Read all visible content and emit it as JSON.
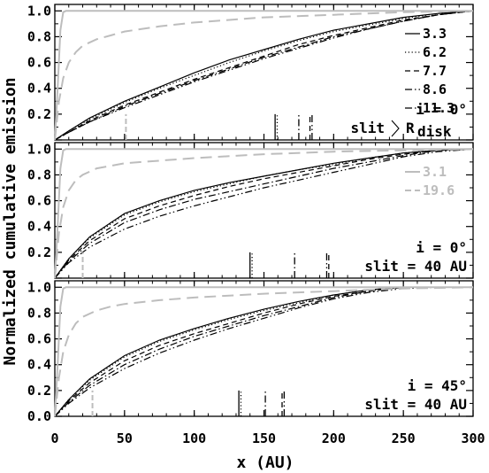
{
  "chart_data": {
    "type": "line",
    "xlabel": "x (AU)",
    "ylabel": "Normalized cumulative emission",
    "xlim": [
      0,
      300
    ],
    "ylim": [
      0,
      1.05
    ],
    "x_ticks": [
      "0",
      "50",
      "100",
      "150",
      "200",
      "250",
      "300"
    ],
    "y_ticks": [
      "0.0",
      "0.2",
      "0.4",
      "0.6",
      "0.8",
      "1.0"
    ],
    "grid": false,
    "colors": {
      "black": "#000000",
      "gray": "#bdbdbd"
    },
    "panels": [
      {
        "annotations": [
          "i = 0°",
          "slit",
          "R"
        ],
        "annotation_sub": "disk",
        "legend": [
          {
            "label": "3.3",
            "style": "solid"
          },
          {
            "label": "6.2",
            "style": "dotted"
          },
          {
            "label": "7.7",
            "style": "dashed"
          },
          {
            "label": "8.6",
            "style": "dashdot"
          },
          {
            "label": "11.3",
            "style": "dashdotdot"
          }
        ],
        "series": [
          {
            "name": "3.3",
            "style": "solid",
            "color": "black",
            "x": [
              0,
              10,
              25,
              50,
              75,
              100,
              125,
              150,
              175,
              200,
              225,
              250,
              275,
              300
            ],
            "y": [
              0,
              0.07,
              0.17,
              0.3,
              0.41,
              0.52,
              0.62,
              0.7,
              0.78,
              0.85,
              0.9,
              0.95,
              0.98,
              1.0
            ]
          },
          {
            "name": "6.2",
            "style": "dotted",
            "color": "black",
            "x": [
              0,
              10,
              25,
              50,
              75,
              100,
              125,
              150,
              175,
              200,
              225,
              250,
              275,
              300
            ],
            "y": [
              0,
              0.07,
              0.16,
              0.29,
              0.4,
              0.5,
              0.6,
              0.69,
              0.77,
              0.84,
              0.89,
              0.94,
              0.98,
              1.0
            ]
          },
          {
            "name": "7.7",
            "style": "dashed",
            "color": "black",
            "x": [
              0,
              10,
              25,
              50,
              75,
              100,
              125,
              150,
              175,
              200,
              225,
              250,
              275,
              300
            ],
            "y": [
              0,
              0.06,
              0.15,
              0.27,
              0.37,
              0.47,
              0.56,
              0.65,
              0.74,
              0.81,
              0.87,
              0.93,
              0.97,
              1.0
            ]
          },
          {
            "name": "8.6",
            "style": "dashdot",
            "color": "black",
            "x": [
              0,
              10,
              25,
              50,
              75,
              100,
              125,
              150,
              175,
              200,
              225,
              250,
              275,
              300
            ],
            "y": [
              0,
              0.06,
              0.14,
              0.26,
              0.36,
              0.46,
              0.55,
              0.64,
              0.72,
              0.8,
              0.86,
              0.92,
              0.97,
              1.0
            ]
          },
          {
            "name": "11.3",
            "style": "dashdotdot",
            "color": "black",
            "x": [
              0,
              10,
              25,
              50,
              75,
              100,
              125,
              150,
              175,
              200,
              225,
              250,
              275,
              300
            ],
            "y": [
              0,
              0.06,
              0.14,
              0.25,
              0.35,
              0.45,
              0.54,
              0.63,
              0.71,
              0.79,
              0.86,
              0.92,
              0.97,
              1.0
            ]
          },
          {
            "name": "3.1",
            "style": "solid",
            "color": "gray",
            "x": [
              0,
              2,
              4,
              6,
              8,
              300
            ],
            "y": [
              0,
              0.4,
              0.85,
              0.99,
              1.0,
              1.0
            ]
          },
          {
            "name": "19.6",
            "style": "longdash",
            "color": "gray",
            "x": [
              0,
              3,
              6,
              10,
              15,
              20,
              30,
              40,
              50,
              75,
              100,
              150,
              200,
              250,
              300
            ],
            "y": [
              0,
              0.3,
              0.48,
              0.6,
              0.68,
              0.73,
              0.78,
              0.81,
              0.84,
              0.88,
              0.91,
              0.95,
              0.97,
              0.99,
              1.0
            ]
          }
        ],
        "markers": [
          {
            "x": 51,
            "style": "longdash",
            "color": "gray"
          },
          {
            "x": 158,
            "style": "solid",
            "color": "black"
          },
          {
            "x": 159.5,
            "style": "dotted",
            "color": "black"
          },
          {
            "x": 175,
            "style": "dashdot",
            "color": "black"
          },
          {
            "x": 183,
            "style": "dashed",
            "color": "black"
          },
          {
            "x": 184.5,
            "style": "dashdotdot",
            "color": "black"
          }
        ]
      },
      {
        "annotations": [
          "i = 0°",
          "slit = 40 AU"
        ],
        "legend": [
          {
            "label": "3.1",
            "style": "solid",
            "color": "gray"
          },
          {
            "label": "19.6",
            "style": "longdash",
            "color": "gray"
          }
        ],
        "series": [
          {
            "name": "3.3",
            "style": "solid",
            "color": "black",
            "x": [
              0,
              10,
              25,
              50,
              75,
              100,
              125,
              150,
              175,
              200,
              225,
              250,
              275,
              300
            ],
            "y": [
              0,
              0.15,
              0.32,
              0.5,
              0.6,
              0.68,
              0.74,
              0.79,
              0.84,
              0.89,
              0.93,
              0.97,
              0.99,
              1.0
            ]
          },
          {
            "name": "6.2",
            "style": "dotted",
            "color": "black",
            "x": [
              0,
              10,
              25,
              50,
              75,
              100,
              125,
              150,
              175,
              200,
              225,
              250,
              275,
              300
            ],
            "y": [
              0,
              0.15,
              0.31,
              0.49,
              0.59,
              0.67,
              0.73,
              0.79,
              0.84,
              0.88,
              0.93,
              0.97,
              0.99,
              1.0
            ]
          },
          {
            "name": "7.7",
            "style": "dashed",
            "color": "black",
            "x": [
              0,
              10,
              25,
              50,
              75,
              100,
              125,
              150,
              175,
              200,
              225,
              250,
              275,
              300
            ],
            "y": [
              0,
              0.14,
              0.29,
              0.46,
              0.56,
              0.64,
              0.71,
              0.77,
              0.82,
              0.87,
              0.92,
              0.96,
              0.99,
              1.0
            ]
          },
          {
            "name": "8.6",
            "style": "dashdot",
            "color": "black",
            "x": [
              0,
              10,
              25,
              50,
              75,
              100,
              125,
              150,
              175,
              200,
              225,
              250,
              275,
              300
            ],
            "y": [
              0,
              0.13,
              0.27,
              0.43,
              0.53,
              0.61,
              0.67,
              0.73,
              0.79,
              0.85,
              0.9,
              0.95,
              0.99,
              1.0
            ]
          },
          {
            "name": "11.3",
            "style": "dashdotdot",
            "color": "black",
            "x": [
              0,
              10,
              25,
              50,
              75,
              100,
              125,
              150,
              175,
              200,
              225,
              250,
              275,
              300
            ],
            "y": [
              0,
              0.12,
              0.24,
              0.38,
              0.48,
              0.56,
              0.63,
              0.7,
              0.76,
              0.82,
              0.88,
              0.94,
              0.98,
              1.0
            ]
          },
          {
            "name": "3.1",
            "style": "solid",
            "color": "gray",
            "x": [
              0,
              2,
              4,
              6,
              8,
              300
            ],
            "y": [
              0,
              0.4,
              0.85,
              0.99,
              1.0,
              1.0
            ]
          },
          {
            "name": "19.6",
            "style": "longdash",
            "color": "gray",
            "x": [
              0,
              3,
              6,
              10,
              15,
              20,
              30,
              40,
              50,
              75,
              100,
              150,
              200,
              250,
              300
            ],
            "y": [
              0,
              0.35,
              0.55,
              0.68,
              0.76,
              0.8,
              0.85,
              0.87,
              0.89,
              0.91,
              0.93,
              0.96,
              0.98,
              0.99,
              1.0
            ]
          }
        ],
        "markers": [
          {
            "x": 20,
            "style": "longdash",
            "color": "gray"
          },
          {
            "x": 140,
            "style": "solid",
            "color": "black"
          },
          {
            "x": 141.5,
            "style": "dotted",
            "color": "black"
          },
          {
            "x": 172,
            "style": "dashdot",
            "color": "black"
          },
          {
            "x": 195,
            "style": "dashdotdot",
            "color": "black"
          },
          {
            "x": 196.5,
            "style": "dashed",
            "color": "black"
          }
        ]
      },
      {
        "annotations": [
          "i = 45°",
          "slit = 40 AU"
        ],
        "legend": [],
        "series": [
          {
            "name": "3.3",
            "style": "solid",
            "color": "black",
            "x": [
              0,
              10,
              25,
              50,
              75,
              100,
              125,
              150,
              175,
              200,
              225,
              250,
              275,
              300
            ],
            "y": [
              0,
              0.13,
              0.29,
              0.47,
              0.59,
              0.68,
              0.76,
              0.83,
              0.89,
              0.94,
              0.98,
              1.0,
              1.0,
              1.0
            ]
          },
          {
            "name": "6.2",
            "style": "dotted",
            "color": "black",
            "x": [
              0,
              10,
              25,
              50,
              75,
              100,
              125,
              150,
              175,
              200,
              225,
              250,
              275,
              300
            ],
            "y": [
              0,
              0.13,
              0.28,
              0.46,
              0.58,
              0.67,
              0.75,
              0.82,
              0.88,
              0.94,
              0.98,
              1.0,
              1.0,
              1.0
            ]
          },
          {
            "name": "7.7",
            "style": "dashed",
            "color": "black",
            "x": [
              0,
              10,
              25,
              50,
              75,
              100,
              125,
              150,
              175,
              200,
              225,
              250,
              275,
              300
            ],
            "y": [
              0,
              0.12,
              0.26,
              0.43,
              0.55,
              0.64,
              0.72,
              0.8,
              0.87,
              0.93,
              0.97,
              1.0,
              1.0,
              1.0
            ]
          },
          {
            "name": "8.6",
            "style": "dashdot",
            "color": "black",
            "x": [
              0,
              10,
              25,
              50,
              75,
              100,
              125,
              150,
              175,
              200,
              225,
              250,
              275,
              300
            ],
            "y": [
              0,
              0.11,
              0.24,
              0.4,
              0.52,
              0.62,
              0.7,
              0.78,
              0.85,
              0.92,
              0.97,
              1.0,
              1.0,
              1.0
            ]
          },
          {
            "name": "11.3",
            "style": "dashdotdot",
            "color": "black",
            "x": [
              0,
              10,
              25,
              50,
              75,
              100,
              125,
              150,
              175,
              200,
              225,
              250,
              275,
              300
            ],
            "y": [
              0,
              0.1,
              0.22,
              0.37,
              0.49,
              0.59,
              0.68,
              0.76,
              0.84,
              0.91,
              0.96,
              0.99,
              1.0,
              1.0
            ]
          },
          {
            "name": "3.1",
            "style": "solid",
            "color": "gray",
            "x": [
              0,
              2,
              4,
              6,
              8,
              300
            ],
            "y": [
              0,
              0.4,
              0.85,
              0.99,
              1.0,
              1.0
            ]
          },
          {
            "name": "19.6",
            "style": "longdash",
            "color": "gray",
            "x": [
              0,
              3,
              6,
              10,
              15,
              20,
              30,
              40,
              50,
              75,
              100,
              150,
              200,
              250,
              300
            ],
            "y": [
              0,
              0.3,
              0.5,
              0.63,
              0.72,
              0.77,
              0.82,
              0.85,
              0.87,
              0.9,
              0.92,
              0.95,
              0.97,
              0.99,
              1.0
            ]
          }
        ],
        "markers": [
          {
            "x": 27,
            "style": "longdash",
            "color": "gray"
          },
          {
            "x": 132,
            "style": "solid",
            "color": "black"
          },
          {
            "x": 133.5,
            "style": "dotted",
            "color": "black"
          },
          {
            "x": 151,
            "style": "dashdot",
            "color": "black"
          },
          {
            "x": 163,
            "style": "dashed",
            "color": "black"
          },
          {
            "x": 164.5,
            "style": "dashdotdot",
            "color": "black"
          }
        ]
      }
    ]
  }
}
